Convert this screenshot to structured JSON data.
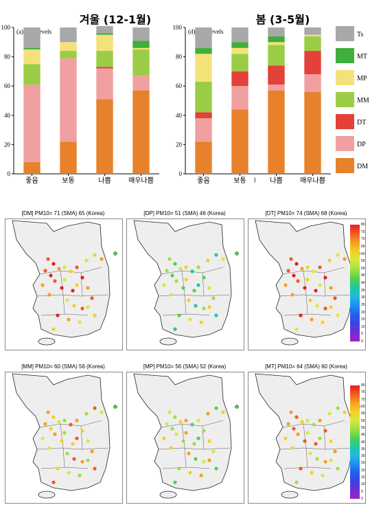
{
  "chart_data": [
    {
      "type": "bar",
      "stacked": true,
      "header": "겨울 (12-1월)",
      "title": "(a) CAI levels",
      "categories": [
        "좋음",
        "보통",
        "나쁨",
        "매우나쁨"
      ],
      "ylim": [
        0,
        100
      ],
      "yticks": [
        "0",
        "20",
        "40",
        "60",
        "80",
        "100"
      ],
      "series": [
        {
          "name": "DM",
          "values": [
            8,
            22,
            51,
            57
          ]
        },
        {
          "name": "DP",
          "values": [
            53,
            57,
            21,
            10
          ]
        },
        {
          "name": "DT",
          "values": [
            0,
            0,
            1,
            0
          ]
        },
        {
          "name": "MM",
          "values": [
            14,
            5,
            11,
            18
          ]
        },
        {
          "name": "MP",
          "values": [
            10,
            6,
            11,
            1
          ]
        },
        {
          "name": "MT",
          "values": [
            1,
            0,
            1,
            5
          ]
        },
        {
          "name": "Ts",
          "values": [
            14,
            10,
            5,
            9
          ]
        }
      ]
    },
    {
      "type": "bar",
      "stacked": true,
      "header": "봄 (3-5월)",
      "title": "(d) CAI levels",
      "categories": [
        "좋음",
        "보통",
        "나쁨",
        "매우나쁨"
      ],
      "ylim": [
        0,
        100
      ],
      "yticks": [
        "0",
        "20",
        "40",
        "60",
        "80",
        "100"
      ],
      "stray_mark": "l",
      "series": [
        {
          "name": "DM",
          "values": [
            22,
            44,
            57,
            56
          ]
        },
        {
          "name": "DP",
          "values": [
            16,
            16,
            4,
            12
          ]
        },
        {
          "name": "DT",
          "values": [
            4,
            10,
            13,
            16
          ]
        },
        {
          "name": "MM",
          "values": [
            21,
            12,
            14,
            10
          ]
        },
        {
          "name": "MP",
          "values": [
            19,
            4,
            2,
            1
          ]
        },
        {
          "name": "MT",
          "values": [
            4,
            4,
            4,
            0
          ]
        },
        {
          "name": "Ts",
          "values": [
            14,
            10,
            6,
            5
          ]
        }
      ]
    }
  ],
  "legend": [
    {
      "name": "Ts",
      "color": "#a8a8a8"
    },
    {
      "name": "MT",
      "color": "#3fae3a"
    },
    {
      "name": "MP",
      "color": "#f5e17a"
    },
    {
      "name": "MM",
      "color": "#9acd45"
    },
    {
      "name": "DT",
      "color": "#e4413b"
    },
    {
      "name": "DP",
      "color": "#f0a0a0"
    },
    {
      "name": "DM",
      "color": "#e8812c"
    }
  ],
  "maps": [
    {
      "title": "[DM] PM10= 71 (SMA) 65 (Korea)"
    },
    {
      "title": "[DP] PM10= 51 (SMA) 46 (Korea)"
    },
    {
      "title": "[DT] PM10= 74 (SMA) 68 (Korea)"
    },
    {
      "title": "[MM] PM10= 60 (SMA) 56 (Korea)"
    },
    {
      "title": "[MP] PM10= 56 (SMA) 52 (Korea)"
    },
    {
      "title": "[MT] PM10= 64 (SMA) 60 (Korea)"
    }
  ],
  "colorbar": {
    "ticks": [
      "80",
      "75",
      "70",
      "65",
      "60",
      "55",
      "50",
      "45",
      "40",
      "35",
      "30",
      "25",
      "20",
      "15",
      "10",
      "5",
      "0"
    ],
    "colors": [
      "#e02020",
      "#f05a20",
      "#f5a020",
      "#f5d020",
      "#d8e840",
      "#9ce040",
      "#50d050",
      "#20c8a0",
      "#20b8e0",
      "#2090f0",
      "#2060f0",
      "#4040e0",
      "#7030d0",
      "#a020d0"
    ]
  }
}
